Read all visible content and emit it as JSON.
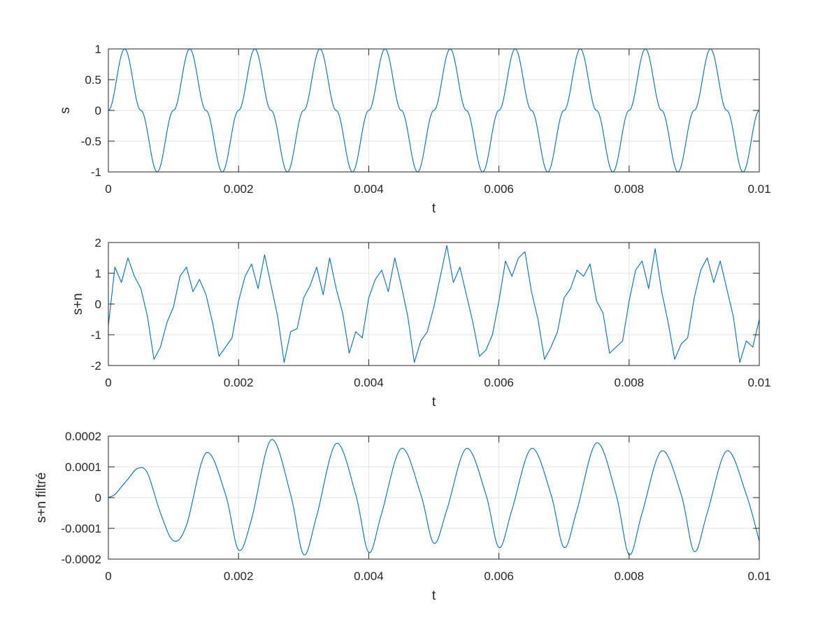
{
  "chart_data": [
    {
      "type": "line",
      "title": "",
      "xlabel": "t",
      "ylabel": "s",
      "xlim": [
        0,
        0.01
      ],
      "ylim": [
        -1,
        1
      ],
      "xticks": [
        0,
        0.002,
        0.004,
        0.006,
        0.008,
        0.01
      ],
      "xtick_labels": [
        "0",
        "0.002",
        "0.004",
        "0.006",
        "0.008",
        "0.01"
      ],
      "yticks": [
        -1,
        -0.5,
        0,
        0.5,
        1
      ],
      "ytick_labels": [
        "-1",
        "-0.5",
        "0",
        "0.5",
        "1"
      ],
      "grid": true,
      "color": "#0072bd",
      "series": [
        {
          "description": "sine wave, 1000 Hz, amplitude 1",
          "x": [
            0,
            0.00025,
            0.0005,
            0.00075,
            0.001,
            0.00125,
            0.0015,
            0.00175,
            0.002,
            0.00225,
            0.0025,
            0.00275,
            0.003,
            0.00325,
            0.0035,
            0.00375,
            0.004,
            0.00425,
            0.0045,
            0.00475,
            0.005,
            0.00525,
            0.0055,
            0.00575,
            0.006,
            0.00625,
            0.0065,
            0.00675,
            0.007,
            0.00725,
            0.0075,
            0.00775,
            0.008,
            0.00825,
            0.0085,
            0.00875,
            0.009,
            0.00925,
            0.0095,
            0.00975,
            0.01
          ],
          "y": [
            0,
            1,
            0,
            -1,
            0,
            1,
            0,
            -1,
            0,
            1,
            0,
            -1,
            0,
            1,
            0,
            -1,
            0,
            1,
            0,
            -1,
            0,
            1,
            0,
            -1,
            0,
            1,
            0,
            -1,
            0,
            1,
            0,
            -1,
            0,
            1,
            0,
            -1,
            0,
            1,
            0,
            -1,
            0
          ]
        }
      ]
    },
    {
      "type": "line",
      "title": "",
      "xlabel": "t",
      "ylabel": "s+n",
      "xlim": [
        0,
        0.01
      ],
      "ylim": [
        -2,
        2
      ],
      "xticks": [
        0,
        0.002,
        0.004,
        0.006,
        0.008,
        0.01
      ],
      "xtick_labels": [
        "0",
        "0.002",
        "0.004",
        "0.006",
        "0.008",
        "0.01"
      ],
      "yticks": [
        -2,
        -1,
        0,
        1,
        2
      ],
      "ytick_labels": [
        "-2",
        "-1",
        "0",
        "1",
        "2"
      ],
      "grid": true,
      "color": "#0072bd",
      "series": [
        {
          "description": "noisy sine wave (signal + noise)",
          "x": [
            0,
            0.0001,
            0.0002,
            0.0003,
            0.0004,
            0.0005,
            0.0006,
            0.0007,
            0.0008,
            0.0009,
            0.001,
            0.0011,
            0.0012,
            0.0013,
            0.0014,
            0.0015,
            0.0016,
            0.0017,
            0.0018,
            0.0019,
            0.002,
            0.0021,
            0.0022,
            0.0023,
            0.0024,
            0.0025,
            0.0026,
            0.0027,
            0.0028,
            0.0029,
            0.003,
            0.0031,
            0.0032,
            0.0033,
            0.0034,
            0.0035,
            0.0036,
            0.0037,
            0.0038,
            0.0039,
            0.004,
            0.0041,
            0.0042,
            0.0043,
            0.0044,
            0.0045,
            0.0046,
            0.0047,
            0.0048,
            0.0049,
            0.005,
            0.0051,
            0.0052,
            0.0053,
            0.0054,
            0.0055,
            0.0056,
            0.0057,
            0.0058,
            0.0059,
            0.006,
            0.0061,
            0.0062,
            0.0063,
            0.0064,
            0.0065,
            0.0066,
            0.0067,
            0.0068,
            0.0069,
            0.007,
            0.0071,
            0.0072,
            0.0073,
            0.0074,
            0.0075,
            0.0076,
            0.0077,
            0.0078,
            0.0079,
            0.008,
            0.0081,
            0.0082,
            0.0083,
            0.0084,
            0.0085,
            0.0086,
            0.0087,
            0.0088,
            0.0089,
            0.009,
            0.0091,
            0.0092,
            0.0093,
            0.0094,
            0.0095,
            0.0096,
            0.0097,
            0.0098,
            0.0099,
            0.01
          ],
          "y": [
            -0.7,
            1.2,
            0.7,
            1.5,
            0.9,
            0.5,
            -0.4,
            -1.8,
            -1.4,
            -0.6,
            -0.1,
            0.9,
            1.2,
            0.4,
            0.8,
            0.3,
            -0.6,
            -1.7,
            -1.4,
            -1.1,
            0.1,
            0.9,
            1.3,
            0.5,
            1.6,
            0.6,
            -0.4,
            -1.9,
            -0.9,
            -0.8,
            0.2,
            0.6,
            1.2,
            0.3,
            1.5,
            0.5,
            -0.3,
            -1.6,
            -0.9,
            -1.1,
            0.2,
            0.8,
            1.1,
            0.4,
            1.5,
            0.6,
            -0.4,
            -1.9,
            -1.2,
            -0.9,
            -0.1,
            0.9,
            1.9,
            0.7,
            1.2,
            0.3,
            -0.6,
            -1.7,
            -1.5,
            -1.0,
            0.1,
            1.4,
            0.9,
            1.5,
            1.7,
            0.4,
            -0.5,
            -1.8,
            -1.4,
            -0.9,
            0.2,
            0.5,
            1.1,
            0.9,
            1.3,
            0.1,
            -0.3,
            -1.6,
            -1.4,
            -1.2,
            0.1,
            1.1,
            1.4,
            0.5,
            1.8,
            0.4,
            -0.6,
            -1.8,
            -1.3,
            -1.1,
            0.2,
            1.1,
            1.5,
            0.7,
            1.4,
            0.5,
            -0.4,
            -1.9,
            -1.2,
            -1.4,
            -0.5
          ]
        }
      ]
    },
    {
      "type": "line",
      "title": "",
      "xlabel": "t",
      "ylabel": "s+n filtré",
      "xlim": [
        0,
        0.01
      ],
      "ylim": [
        -0.0002,
        0.0002
      ],
      "xticks": [
        0,
        0.002,
        0.004,
        0.006,
        0.008,
        0.01
      ],
      "xtick_labels": [
        "0",
        "0.002",
        "0.004",
        "0.006",
        "0.008",
        "0.01"
      ],
      "yticks": [
        -0.0002,
        -0.0001,
        0,
        0.0001,
        0.0002
      ],
      "ytick_labels": [
        "-0.0002",
        "-0.0001",
        "0",
        "0.0001",
        "0.0002"
      ],
      "grid": true,
      "color": "#0072bd",
      "series": [
        {
          "description": "filtered signal",
          "x": [
            0,
            0.0001,
            0.0002,
            0.0003,
            0.00045,
            0.0006,
            0.0008,
            0.001,
            0.0012,
            0.0015,
            0.0018,
            0.002,
            0.0022,
            0.0025,
            0.0028,
            0.003,
            0.0032,
            0.0035,
            0.0038,
            0.004,
            0.0042,
            0.0045,
            0.0048,
            0.005,
            0.0052,
            0.0055,
            0.0058,
            0.006,
            0.0062,
            0.0065,
            0.0068,
            0.007,
            0.0072,
            0.0075,
            0.0078,
            0.008,
            0.0082,
            0.0085,
            0.0088,
            0.009,
            0.0092,
            0.0095,
            0.0098,
            0.01
          ],
          "y": [
            0,
            1e-05,
            3.5e-05,
            6e-05,
            9.5e-05,
            8e-05,
            -5e-05,
            -0.00014,
            -9e-05,
            0.000145,
            1e-05,
            -0.00017,
            -7e-05,
            0.000188,
            1e-05,
            -0.000185,
            -6e-05,
            0.000176,
            1e-05,
            -0.000178,
            -5e-05,
            0.00016,
            1e-05,
            -0.000148,
            -4e-05,
            0.00016,
            1e-05,
            -0.000162,
            -4e-05,
            0.00016,
            1e-05,
            -0.000162,
            -4e-05,
            0.000178,
            1e-05,
            -0.000185,
            -5e-05,
            0.000152,
            1e-05,
            -0.000175,
            -5e-05,
            0.000152,
            1e-05,
            -0.000142
          ]
        }
      ]
    }
  ]
}
